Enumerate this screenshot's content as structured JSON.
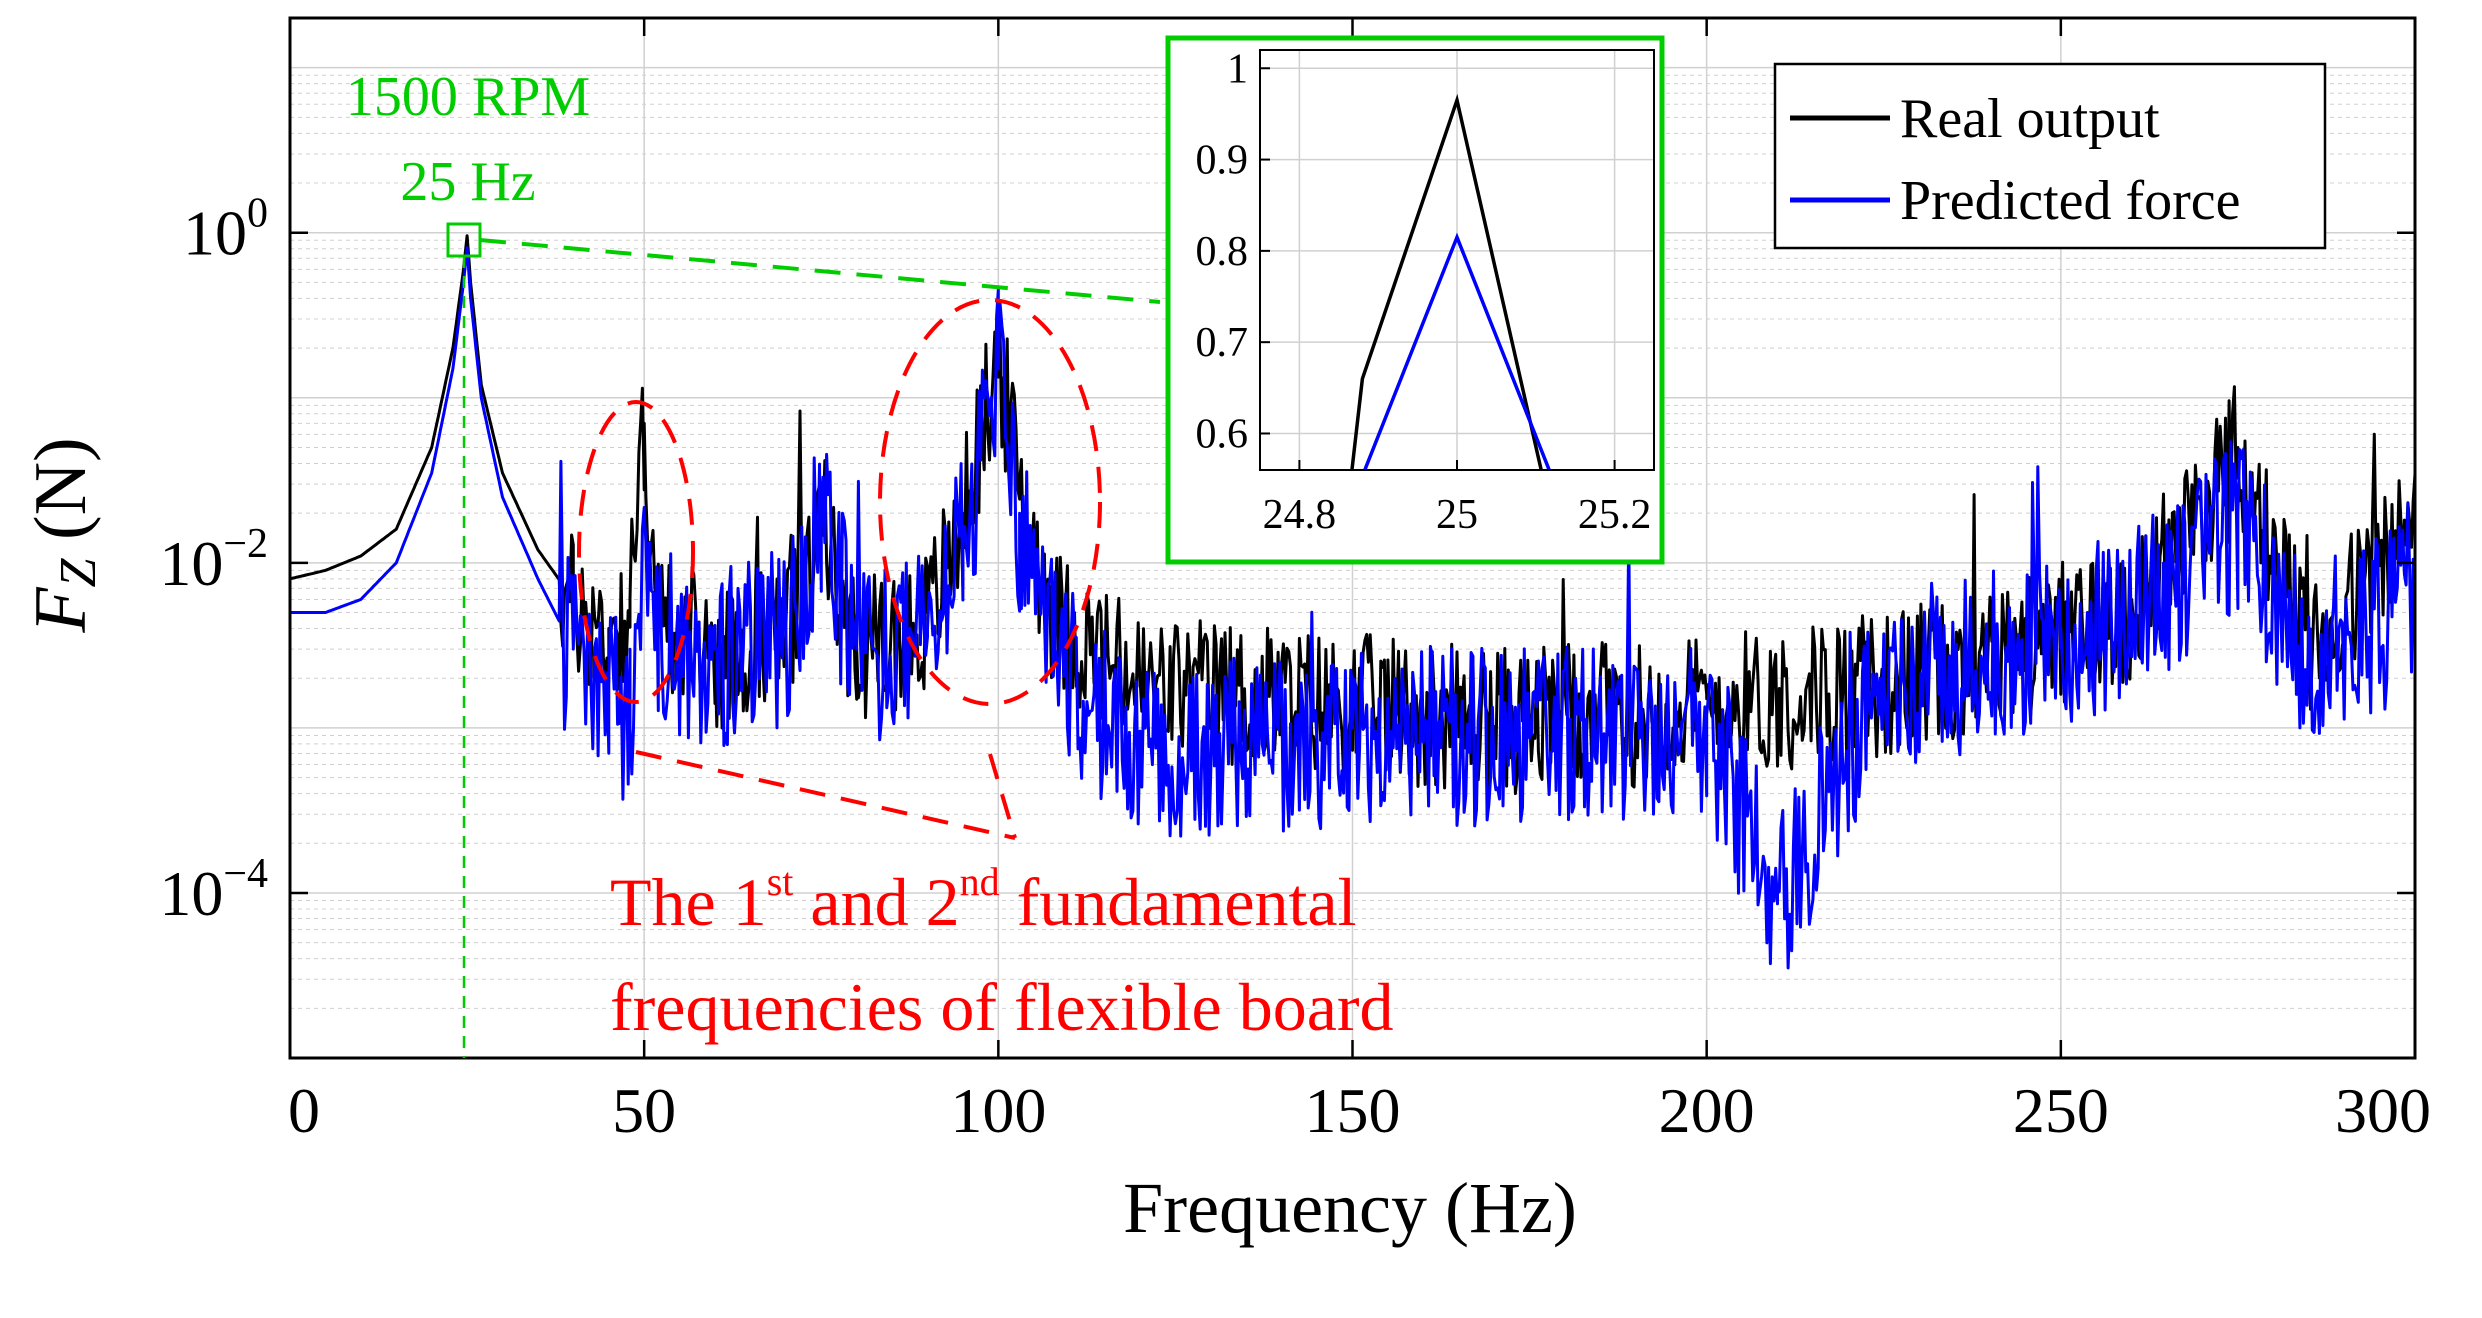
{
  "colors": {
    "real": "#000000",
    "predicted": "#0000ff",
    "highlight": "#00cc00",
    "annotation": "#ff0000",
    "grid": "#d0d0d0"
  },
  "chart_data": {
    "type": "line",
    "xlabel": "Frequency (Hz)",
    "ylabel_symbol": "F",
    "ylabel_subscript": "Z",
    "ylabel_unit": "(N)",
    "xscale": "linear",
    "yscale": "log",
    "xlim": [
      0,
      300
    ],
    "ylim": [
      1e-05,
      20
    ],
    "x_ticks": [
      0,
      50,
      100,
      150,
      200,
      250,
      300
    ],
    "x_tick_labels": [
      "0",
      "50",
      "100",
      "150",
      "200",
      "250",
      "300"
    ],
    "y_ticks": [
      {
        "value": 1,
        "base": "10",
        "exp": "0"
      },
      {
        "value": 0.01,
        "base": "10",
        "exp": "−2"
      },
      {
        "value": 0.0001,
        "base": "10",
        "exp": "−4"
      }
    ],
    "grid": true,
    "legend": {
      "position": "top-right",
      "entries": [
        {
          "label": "Real output",
          "series": "real"
        },
        {
          "label": "Predicted force",
          "series": "predicted"
        }
      ]
    },
    "series": [
      {
        "name": "Real output",
        "key": "real",
        "description": "FFT amplitude spectrum, noise floor ~0.001-0.01 N with spikes",
        "points": [
          [
            0,
            0.008
          ],
          [
            5,
            0.009
          ],
          [
            10,
            0.011
          ],
          [
            15,
            0.016
          ],
          [
            20,
            0.05
          ],
          [
            23,
            0.2
          ],
          [
            24.5,
            0.6
          ],
          [
            25,
            0.96
          ],
          [
            25.5,
            0.5
          ],
          [
            27,
            0.12
          ],
          [
            30,
            0.035
          ],
          [
            35,
            0.012
          ],
          [
            40,
            0.006
          ],
          [
            45,
            0.004
          ],
          [
            48,
            0.006
          ],
          [
            50,
            0.07
          ],
          [
            52,
            0.005
          ],
          [
            60,
            0.003
          ],
          [
            70,
            0.004
          ],
          [
            75,
            0.02
          ],
          [
            80,
            0.003
          ],
          [
            90,
            0.005
          ],
          [
            95,
            0.02
          ],
          [
            100,
            0.2
          ],
          [
            103,
            0.03
          ],
          [
            108,
            0.005
          ],
          [
            120,
            0.002
          ],
          [
            150,
            0.0015
          ],
          [
            175,
            0.0012
          ],
          [
            200,
            0.0015
          ],
          [
            225,
            0.002
          ],
          [
            250,
            0.004
          ],
          [
            260,
            0.006
          ],
          [
            275,
            0.05
          ],
          [
            285,
            0.003
          ],
          [
            300,
            0.02
          ]
        ]
      },
      {
        "name": "Predicted force",
        "key": "predicted",
        "description": "Predicted spectrum tracking the real output, slightly lower at low frequency",
        "points": [
          [
            0,
            0.005
          ],
          [
            5,
            0.005
          ],
          [
            10,
            0.006
          ],
          [
            15,
            0.01
          ],
          [
            20,
            0.035
          ],
          [
            23,
            0.15
          ],
          [
            24.5,
            0.5
          ],
          [
            25,
            0.81
          ],
          [
            25.5,
            0.4
          ],
          [
            27,
            0.1
          ],
          [
            30,
            0.025
          ],
          [
            35,
            0.008
          ],
          [
            40,
            0.003
          ],
          [
            45,
            0.002
          ],
          [
            48,
            0.001
          ],
          [
            50,
            0.02
          ],
          [
            52,
            0.004
          ],
          [
            60,
            0.003
          ],
          [
            70,
            0.004
          ],
          [
            75,
            0.02
          ],
          [
            80,
            0.003
          ],
          [
            90,
            0.004
          ],
          [
            95,
            0.015
          ],
          [
            100,
            0.15
          ],
          [
            103,
            0.02
          ],
          [
            108,
            0.003
          ],
          [
            120,
            0.0008
          ],
          [
            150,
            0.001
          ],
          [
            175,
            0.001
          ],
          [
            200,
            0.0012
          ],
          [
            210,
            0.0001
          ],
          [
            225,
            0.002
          ],
          [
            250,
            0.004
          ],
          [
            260,
            0.005
          ],
          [
            275,
            0.02
          ],
          [
            285,
            0.003
          ],
          [
            300,
            0.006
          ]
        ]
      }
    ],
    "annotations": {
      "peak_line1": "1500 RPM",
      "peak_line2": "25 Hz",
      "peak_x": 25,
      "peak_y": 1,
      "note_line1_a": "The 1",
      "note_line1_sup1": "st",
      "note_line1_b": " and 2",
      "note_line1_sup2": "nd",
      "note_line1_c": " fundamental",
      "note_line2": "frequencies of flexible board",
      "ellipse_centers_hz": [
        50,
        100
      ]
    },
    "inset": {
      "xlim": [
        24.75,
        25.25
      ],
      "ylim": [
        0.56,
        1.02
      ],
      "x_ticks": [
        24.8,
        25,
        25.2
      ],
      "x_tick_labels": [
        "24.8",
        "25",
        "25.2"
      ],
      "y_ticks": [
        0.6,
        0.7,
        0.8,
        0.9,
        1
      ],
      "y_tick_labels": [
        "0.6",
        "0.7",
        "0.8",
        "0.9",
        "1"
      ],
      "real_points": [
        [
          24.86,
          0.51
        ],
        [
          24.88,
          0.66
        ],
        [
          25,
          0.965
        ],
        [
          25.12,
          0.51
        ]
      ],
      "predicted_points": [
        [
          24.86,
          0.51
        ],
        [
          25,
          0.815
        ],
        [
          25.14,
          0.51
        ]
      ]
    }
  }
}
